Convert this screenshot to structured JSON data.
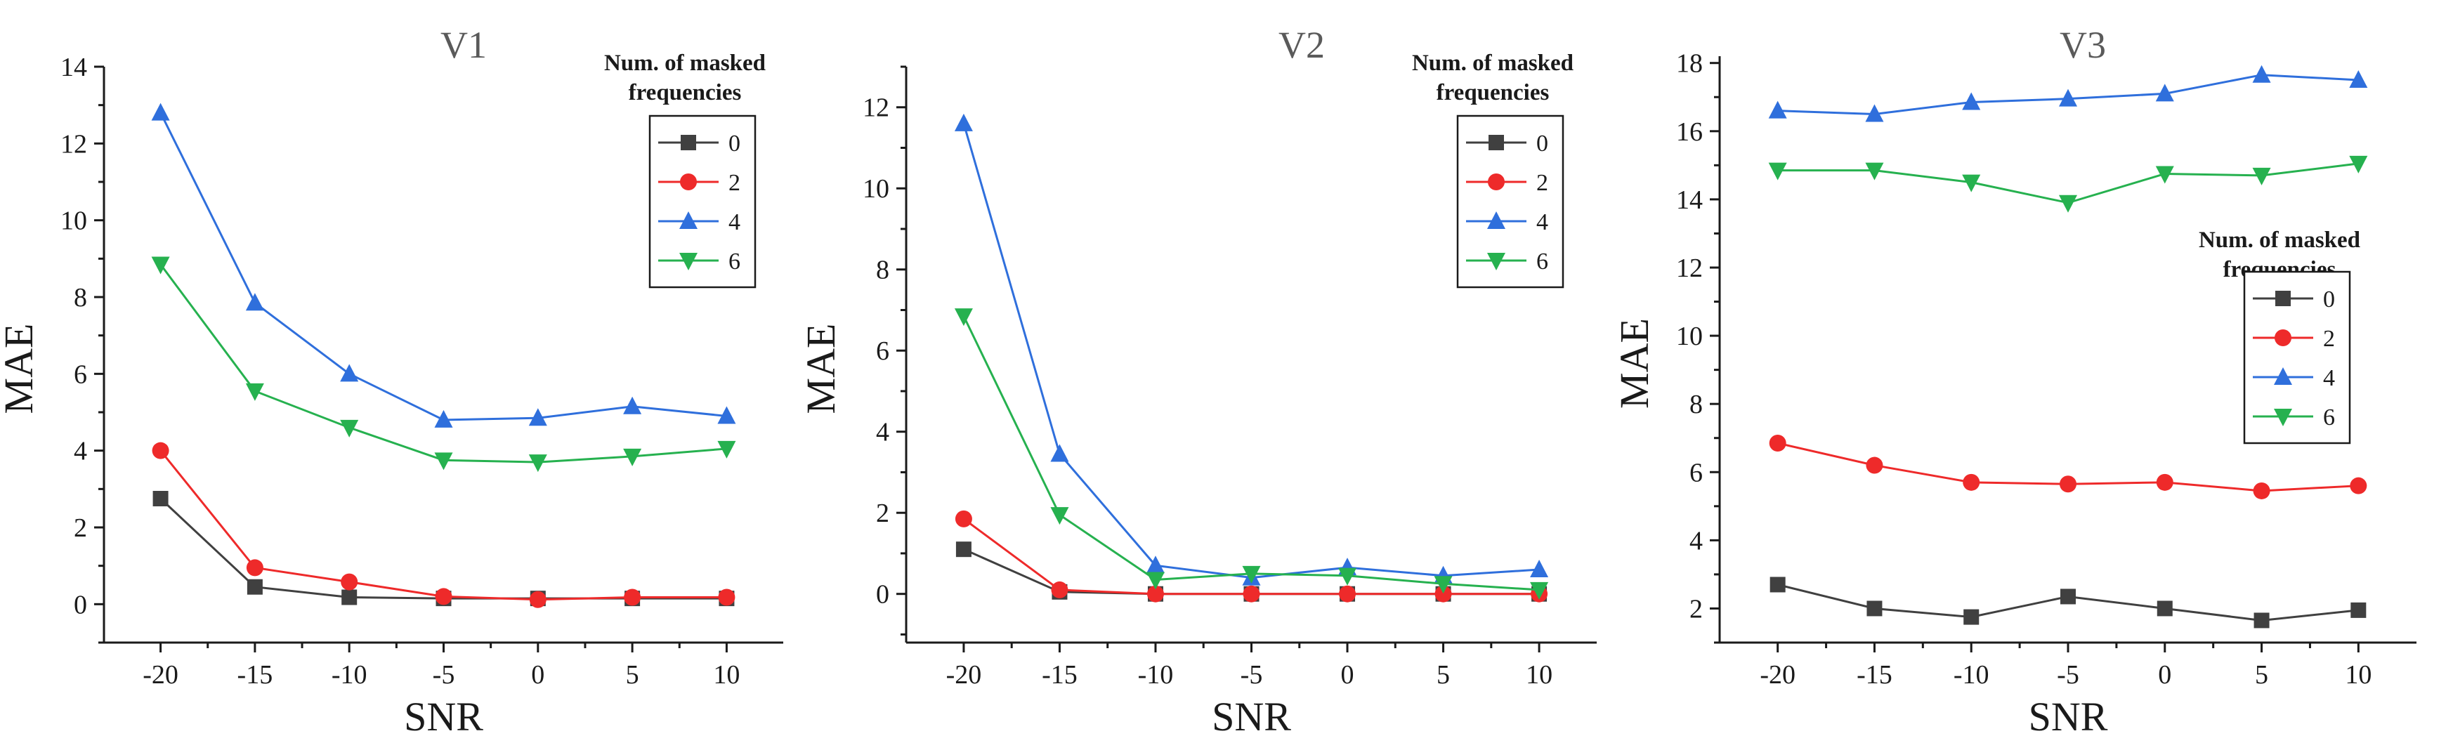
{
  "chart_data": [
    {
      "type": "line",
      "title": "V1",
      "xlabel": "SNR",
      "ylabel": "MAE",
      "x": [
        -20,
        -15,
        -10,
        -5,
        0,
        5,
        10
      ],
      "xticks": [
        "-20",
        "-15",
        "-10",
        "-5",
        "0",
        "5",
        "10"
      ],
      "ylim": [
        -1,
        14
      ],
      "yticks": [
        "0",
        "2",
        "4",
        "6",
        "8",
        "10",
        "12",
        "14"
      ],
      "legend_title": "Num. of masked frequencies",
      "legend_position": "top-right",
      "series": [
        {
          "name": "0",
          "color": "#404040",
          "marker": "square",
          "values": [
            2.75,
            0.45,
            0.18,
            0.15,
            0.15,
            0.15,
            0.15
          ]
        },
        {
          "name": "2",
          "color": "#ee2a2a",
          "marker": "circle",
          "values": [
            4.0,
            0.95,
            0.58,
            0.2,
            0.12,
            0.18,
            0.18
          ]
        },
        {
          "name": "4",
          "color": "#2f6fdc",
          "marker": "triangle-up",
          "values": [
            12.8,
            7.85,
            6.0,
            4.8,
            4.85,
            5.15,
            4.9
          ]
        },
        {
          "name": "6",
          "color": "#26b14f",
          "marker": "triangle-down",
          "values": [
            8.85,
            5.55,
            4.6,
            3.75,
            3.7,
            3.85,
            4.05
          ]
        }
      ]
    },
    {
      "type": "line",
      "title": "V2",
      "xlabel": "SNR",
      "ylabel": "MAE",
      "x": [
        -20,
        -15,
        -10,
        -5,
        0,
        5,
        10
      ],
      "xticks": [
        "-20",
        "-15",
        "-10",
        "-5",
        "0",
        "5",
        "10"
      ],
      "ylim": [
        -1.2,
        13
      ],
      "yticks": [
        "0",
        "2",
        "4",
        "6",
        "8",
        "10",
        "12"
      ],
      "legend_title": "Num. of masked frequencies",
      "legend_position": "top-right",
      "series": [
        {
          "name": "0",
          "color": "#404040",
          "marker": "square",
          "values": [
            1.1,
            0.05,
            0.0,
            0.0,
            0.0,
            0.0,
            0.0
          ]
        },
        {
          "name": "2",
          "color": "#ee2a2a",
          "marker": "circle",
          "values": [
            1.85,
            0.1,
            0.0,
            0.0,
            0.0,
            0.0,
            0.0
          ]
        },
        {
          "name": "4",
          "color": "#2f6fdc",
          "marker": "triangle-up",
          "values": [
            11.6,
            3.45,
            0.7,
            0.4,
            0.65,
            0.45,
            0.6
          ]
        },
        {
          "name": "6",
          "color": "#26b14f",
          "marker": "triangle-down",
          "values": [
            6.85,
            1.95,
            0.35,
            0.5,
            0.45,
            0.25,
            0.1
          ]
        }
      ]
    },
    {
      "type": "line",
      "title": "V3",
      "xlabel": "SNR",
      "ylabel": "MAE",
      "x": [
        -20,
        -15,
        -10,
        -5,
        0,
        5,
        10
      ],
      "xticks": [
        "-20",
        "-15",
        "-10",
        "-5",
        "0",
        "5",
        "10"
      ],
      "ylim": [
        1.0,
        18.2
      ],
      "yticks": [
        "2",
        "4",
        "6",
        "8",
        "10",
        "12",
        "14",
        "16",
        "18"
      ],
      "legend_title": "Num. of masked frequencies",
      "legend_position": "center-right",
      "series": [
        {
          "name": "0",
          "color": "#404040",
          "marker": "square",
          "values": [
            2.7,
            2.0,
            1.75,
            2.35,
            2.0,
            1.65,
            1.95
          ]
        },
        {
          "name": "2",
          "color": "#ee2a2a",
          "marker": "circle",
          "values": [
            6.85,
            6.2,
            5.7,
            5.65,
            5.7,
            5.45,
            5.6
          ]
        },
        {
          "name": "4",
          "color": "#2f6fdc",
          "marker": "triangle-up",
          "values": [
            16.6,
            16.5,
            16.85,
            16.95,
            17.1,
            17.65,
            17.5
          ]
        },
        {
          "name": "6",
          "color": "#26b14f",
          "marker": "triangle-down",
          "values": [
            14.85,
            14.85,
            14.5,
            13.9,
            14.75,
            14.7,
            15.05
          ]
        }
      ]
    }
  ]
}
